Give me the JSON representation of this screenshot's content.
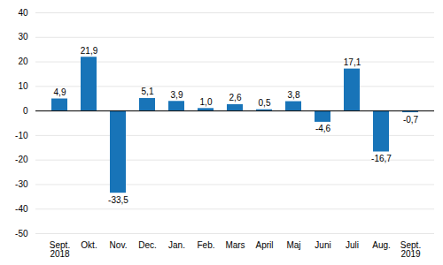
{
  "chart_data": {
    "type": "bar",
    "categories": [
      "Sept.\n2018",
      "Okt.",
      "Nov.",
      "Dec.",
      "Jan.",
      "Feb.",
      "Mars",
      "April",
      "Maj",
      "Juni",
      "Juli",
      "Aug.",
      "Sept.\n2019"
    ],
    "values": [
      4.9,
      21.9,
      -33.5,
      5.1,
      3.9,
      1.0,
      2.6,
      0.5,
      3.8,
      -4.6,
      17.1,
      -16.7,
      -0.7
    ],
    "value_labels": [
      "4,9",
      "21,9",
      "-33,5",
      "5,1",
      "3,9",
      "1,0",
      "2,6",
      "0,5",
      "3,8",
      "-4,6",
      "17,1",
      "-16,7",
      "-0,7"
    ],
    "data_labels": true,
    "color": "#1874b8",
    "ylim": [
      -50,
      40
    ],
    "yticks": [
      -50,
      -40,
      -30,
      -20,
      -10,
      0,
      10,
      20,
      30,
      40
    ],
    "grid": true
  }
}
